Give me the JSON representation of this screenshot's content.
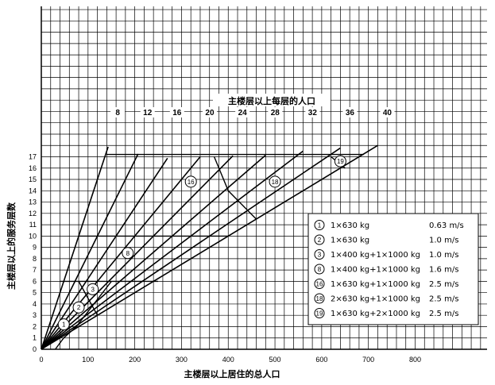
{
  "chart_data": {
    "type": "line",
    "title": "主楼层以上每层的人口",
    "xlabel": "主楼层以上居住的总人口",
    "ylabel": "主楼层以上的服务层数",
    "xlim": [
      0,
      950
    ],
    "ylim": [
      0,
      19
    ],
    "x_ticks": [
      0,
      100,
      200,
      300,
      400,
      500,
      600,
      700,
      800
    ],
    "y_ticks": [
      0,
      1,
      2,
      3,
      4,
      5,
      6,
      7,
      8,
      9,
      10,
      11,
      12,
      13,
      14,
      15,
      16,
      17
    ],
    "grid": true,
    "fan_lines": [
      {
        "label": "8",
        "slope": 8,
        "x_end": 143
      },
      {
        "label": "12",
        "slope": 12,
        "x_end": 207
      },
      {
        "label": "16",
        "slope": 16,
        "x_end": 270
      },
      {
        "label": "20",
        "slope": 20,
        "x_end": 340
      },
      {
        "label": "24",
        "slope": 24,
        "x_end": 410
      },
      {
        "label": "28",
        "slope": 28,
        "x_end": 480
      },
      {
        "label": "32",
        "slope": 32,
        "x_end": 560
      },
      {
        "label": "36",
        "slope": 36,
        "x_end": 640
      },
      {
        "label": "40",
        "slope": 40,
        "x_end": 720
      }
    ],
    "boundaries": [
      {
        "name": "boundary-1",
        "points": [
          [
            48,
            1
          ],
          [
            30,
            0
          ]
        ]
      },
      {
        "name": "boundary-2",
        "points": [
          [
            75,
            2
          ],
          [
            48,
            1
          ]
        ]
      },
      {
        "name": "boundary-3",
        "points": [
          [
            150,
            6
          ],
          [
            75,
            2
          ]
        ]
      },
      {
        "name": "boundary-8",
        "points": [
          [
            80,
            6
          ],
          [
            120,
            3
          ]
        ]
      },
      {
        "name": "boundary-16",
        "points": [
          [
            370,
            17
          ],
          [
            400,
            14
          ],
          [
            460,
            11.5
          ]
        ]
      },
      {
        "name": "boundary-19",
        "points": [
          [
            620,
            17
          ],
          [
            650,
            16
          ]
        ]
      },
      {
        "name": "level-6",
        "points": [
          [
            40,
            6
          ],
          [
            250,
            6
          ]
        ]
      },
      {
        "name": "level-10",
        "points": [
          [
            80,
            10
          ],
          [
            400,
            10
          ]
        ]
      },
      {
        "name": "level-17",
        "points": [
          [
            140,
            17.2
          ],
          [
            690,
            17.2
          ]
        ]
      }
    ],
    "markers": [
      {
        "label": "1",
        "x": 48,
        "y": 2.2
      },
      {
        "label": "2",
        "x": 80,
        "y": 3.7
      },
      {
        "label": "3",
        "x": 110,
        "y": 5.3
      },
      {
        "label": "8",
        "x": 185,
        "y": 8.5
      },
      {
        "label": "16",
        "x": 320,
        "y": 14.8
      },
      {
        "label": "18",
        "x": 500,
        "y": 14.8
      },
      {
        "label": "19",
        "x": 640,
        "y": 16.6
      }
    ],
    "legend": {
      "placement": "bottom-right",
      "items": [
        {
          "marker": "1",
          "config": "1×630 kg",
          "speed": "0.63 m/s"
        },
        {
          "marker": "2",
          "config": "1×630 kg",
          "speed": "1.0 m/s"
        },
        {
          "marker": "3",
          "config": "1×400 kg+1×1000 kg",
          "speed": "1.0 m/s"
        },
        {
          "marker": "8",
          "config": "1×400 kg+1×1000 kg",
          "speed": "1.6 m/s"
        },
        {
          "marker": "16",
          "config": "1×630 kg+1×1000 kg",
          "speed": "2.5 m/s"
        },
        {
          "marker": "18",
          "config": "2×630 kg+1×1000 kg",
          "speed": "2.5 m/s"
        },
        {
          "marker": "19",
          "config": "1×630 kg+2×1000 kg",
          "speed": "2.5 m/s"
        }
      ]
    }
  }
}
